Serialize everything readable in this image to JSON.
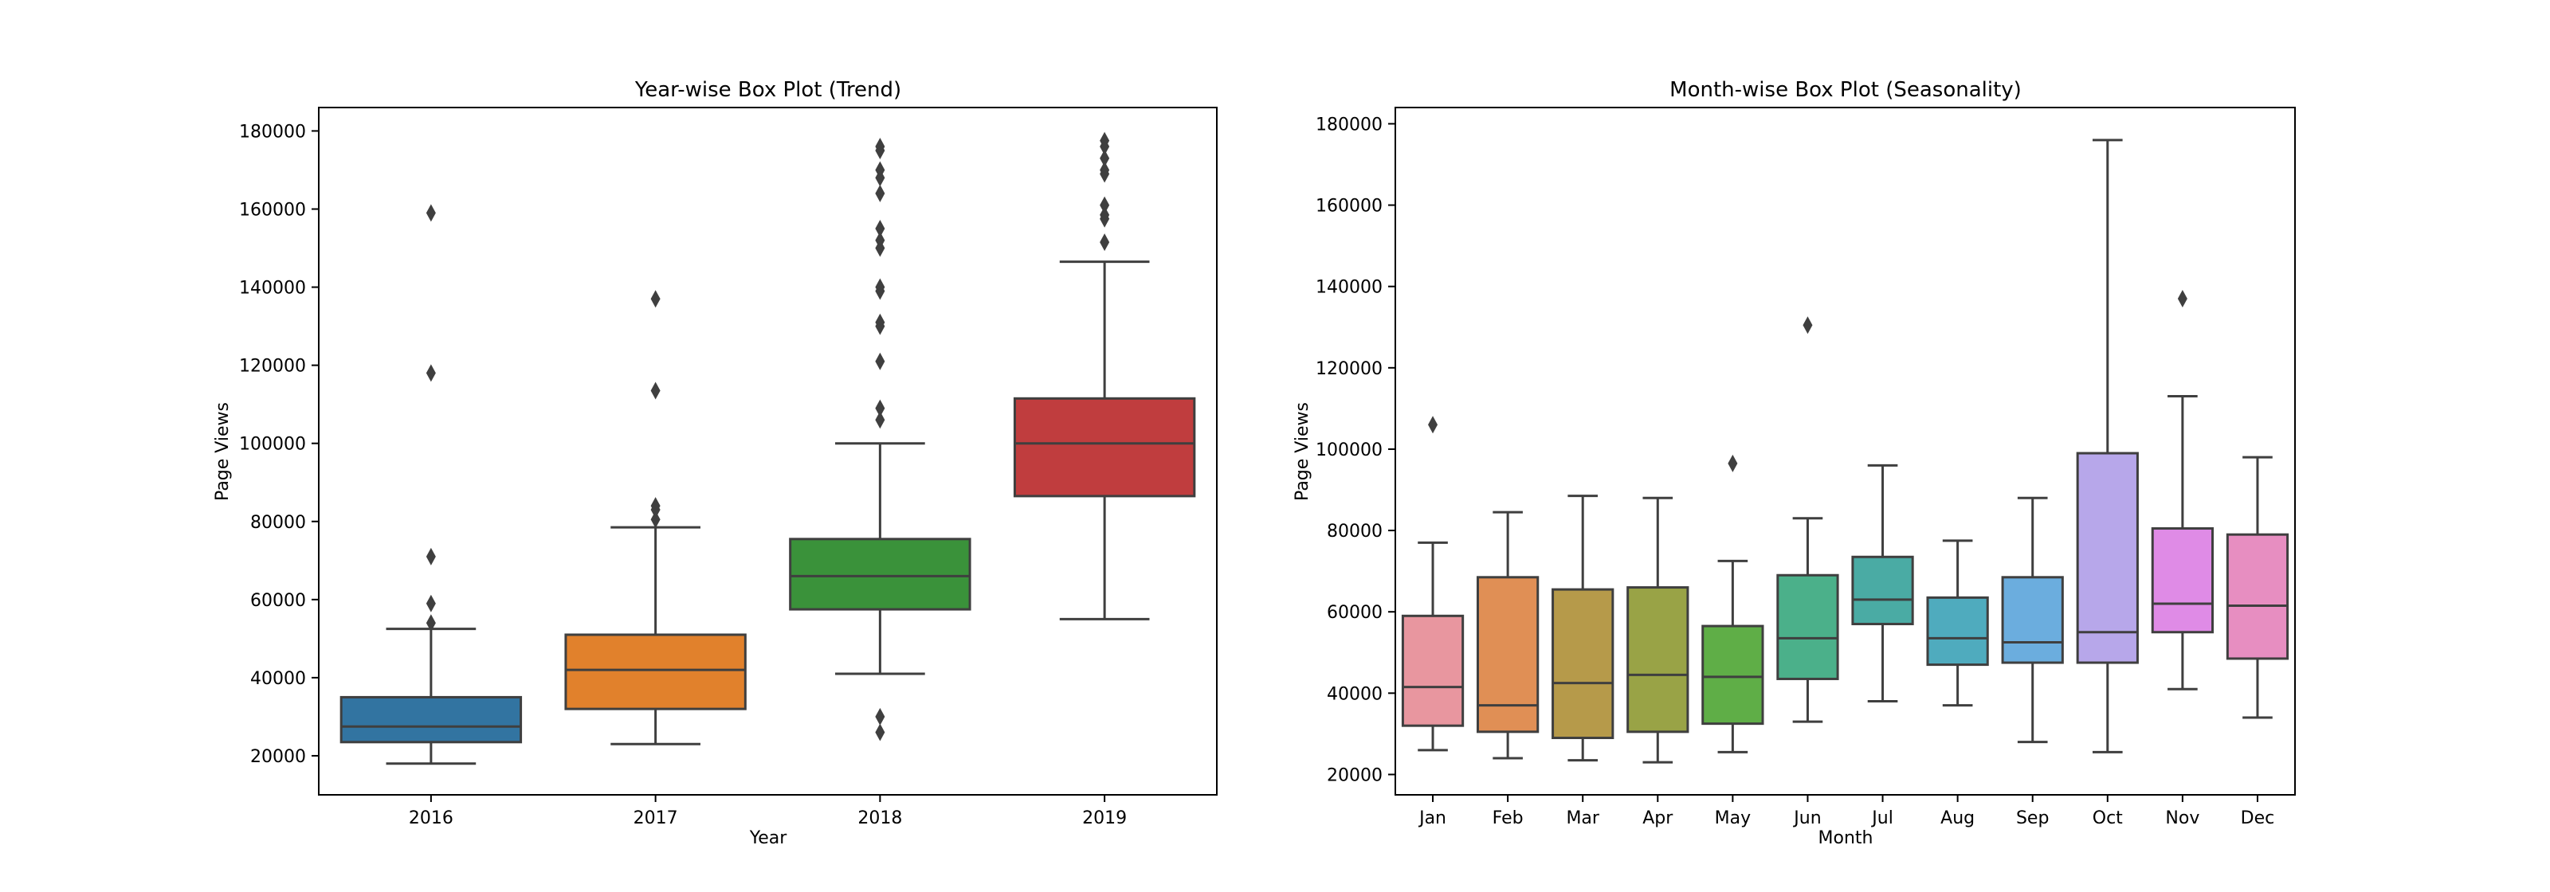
{
  "chart_data": [
    {
      "type": "box",
      "title": "Year-wise Box Plot (Trend)",
      "xlabel": "Year",
      "ylabel": "Page Views",
      "ylim": [
        10000,
        186000
      ],
      "yticks": [
        20000,
        40000,
        60000,
        80000,
        100000,
        120000,
        140000,
        160000,
        180000
      ],
      "ytick_labels": [
        "20000",
        "40000",
        "60000",
        "80000",
        "100000",
        "120000",
        "140000",
        "160000",
        "180000"
      ],
      "grid": false,
      "categories": [
        "2016",
        "2017",
        "2018",
        "2019"
      ],
      "boxes": [
        {
          "category": "2016",
          "color": "#3274a1",
          "whisker_low": 18000,
          "q1": 23500,
          "median": 27500,
          "q3": 35000,
          "whisker_high": 52500,
          "outliers": [
            159000,
            118000,
            71000,
            59000,
            54000
          ]
        },
        {
          "category": "2017",
          "color": "#e1812c",
          "whisker_low": 23000,
          "q1": 32000,
          "median": 42000,
          "q3": 51000,
          "whisker_high": 78500,
          "outliers": [
            137000,
            113500,
            84000,
            83000,
            80500
          ]
        },
        {
          "category": "2018",
          "color": "#3a923a",
          "whisker_low": 41000,
          "q1": 57500,
          "median": 66000,
          "q3": 75500,
          "whisker_high": 100000,
          "outliers": [
            176000,
            175000,
            170000,
            168000,
            164000,
            155000,
            152000,
            150000,
            140000,
            139000,
            131000,
            130000,
            121000,
            109000,
            106000,
            30000,
            26000
          ]
        },
        {
          "category": "2019",
          "color": "#c03d3e",
          "whisker_low": 55000,
          "q1": 86500,
          "median": 100000,
          "q3": 111500,
          "whisker_high": 146500,
          "outliers": [
            177500,
            176000,
            173000,
            170000,
            169000,
            161000,
            158500,
            157500,
            151500
          ]
        }
      ]
    },
    {
      "type": "box",
      "title": "Month-wise Box Plot (Seasonality)",
      "xlabel": "Month",
      "ylabel": "Page Views",
      "ylim": [
        15000,
        184000
      ],
      "yticks": [
        20000,
        40000,
        60000,
        80000,
        100000,
        120000,
        140000,
        160000,
        180000
      ],
      "ytick_labels": [
        "20000",
        "40000",
        "60000",
        "80000",
        "100000",
        "120000",
        "140000",
        "160000",
        "180000"
      ],
      "grid": false,
      "categories": [
        "Jan",
        "Feb",
        "Mar",
        "Apr",
        "May",
        "Jun",
        "Jul",
        "Aug",
        "Sep",
        "Oct",
        "Nov",
        "Dec"
      ],
      "boxes": [
        {
          "category": "Jan",
          "color": "#e8969f",
          "whisker_low": 26000,
          "q1": 32000,
          "median": 41500,
          "q3": 59000,
          "whisker_high": 77000,
          "outliers": [
            106000
          ]
        },
        {
          "category": "Feb",
          "color": "#e08f55",
          "whisker_low": 24000,
          "q1": 30500,
          "median": 37000,
          "q3": 68500,
          "whisker_high": 84500,
          "outliers": []
        },
        {
          "category": "Mar",
          "color": "#b69a4a",
          "whisker_low": 23500,
          "q1": 29000,
          "median": 42500,
          "q3": 65500,
          "whisker_high": 88500,
          "outliers": []
        },
        {
          "category": "Apr",
          "color": "#99a346",
          "whisker_low": 23000,
          "q1": 30500,
          "median": 44500,
          "q3": 66000,
          "whisker_high": 88000,
          "outliers": []
        },
        {
          "category": "May",
          "color": "#5fae47",
          "whisker_low": 25500,
          "q1": 32500,
          "median": 44000,
          "q3": 56500,
          "whisker_high": 72500,
          "outliers": [
            96500
          ]
        },
        {
          "category": "Jun",
          "color": "#4bb08a",
          "whisker_low": 33000,
          "q1": 43500,
          "median": 53500,
          "q3": 69000,
          "whisker_high": 83000,
          "outliers": [
            130500
          ]
        },
        {
          "category": "Jul",
          "color": "#4aaba4",
          "whisker_low": 38000,
          "q1": 57000,
          "median": 63000,
          "q3": 73500,
          "whisker_high": 96000,
          "outliers": []
        },
        {
          "category": "Aug",
          "color": "#4fabbe",
          "whisker_low": 37000,
          "q1": 47000,
          "median": 53500,
          "q3": 63500,
          "whisker_high": 77500,
          "outliers": []
        },
        {
          "category": "Sep",
          "color": "#6badde",
          "whisker_low": 28000,
          "q1": 47500,
          "median": 52500,
          "q3": 68500,
          "whisker_high": 88000,
          "outliers": []
        },
        {
          "category": "Oct",
          "color": "#b7a7ea",
          "whisker_low": 25500,
          "q1": 47500,
          "median": 55000,
          "q3": 99000,
          "whisker_high": 176000,
          "outliers": []
        },
        {
          "category": "Nov",
          "color": "#df8be6",
          "whisker_low": 41000,
          "q1": 55000,
          "median": 62000,
          "q3": 80500,
          "whisker_high": 113000,
          "outliers": [
            137000
          ]
        },
        {
          "category": "Dec",
          "color": "#e78ec1",
          "whisker_low": 34000,
          "q1": 48500,
          "median": 61500,
          "q3": 79000,
          "whisker_high": 98000,
          "outliers": []
        }
      ]
    }
  ]
}
